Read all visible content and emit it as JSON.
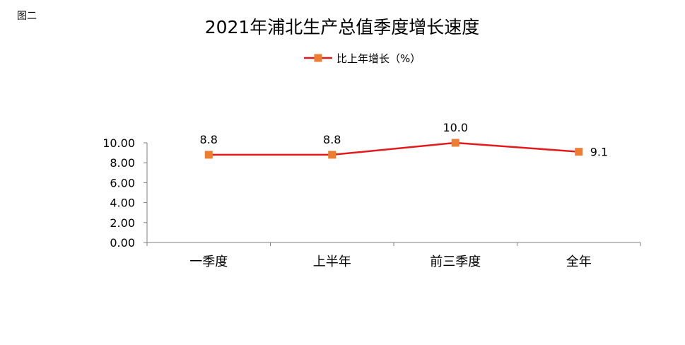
{
  "figure_label": "图二",
  "chart_data": {
    "type": "line",
    "title": "2021年浦北生产总值季度增长速度",
    "categories": [
      "一季度",
      "上半年",
      "前三季度",
      "全年"
    ],
    "series": [
      {
        "name": "比上年增长（%）",
        "values": [
          8.8,
          8.8,
          10.0,
          9.1
        ],
        "labels": [
          "8.8",
          "8.8",
          "10.0",
          "9.1"
        ]
      }
    ],
    "y_ticks": [
      "0.00",
      "2.00",
      "4.00",
      "6.00",
      "8.00",
      "10.00"
    ],
    "ylim": [
      0,
      10
    ],
    "grid": false,
    "legend_position": "top"
  },
  "colors": {
    "line": "#e31a1c",
    "marker": "#ed7d31",
    "axis": "#7f7f7f"
  }
}
